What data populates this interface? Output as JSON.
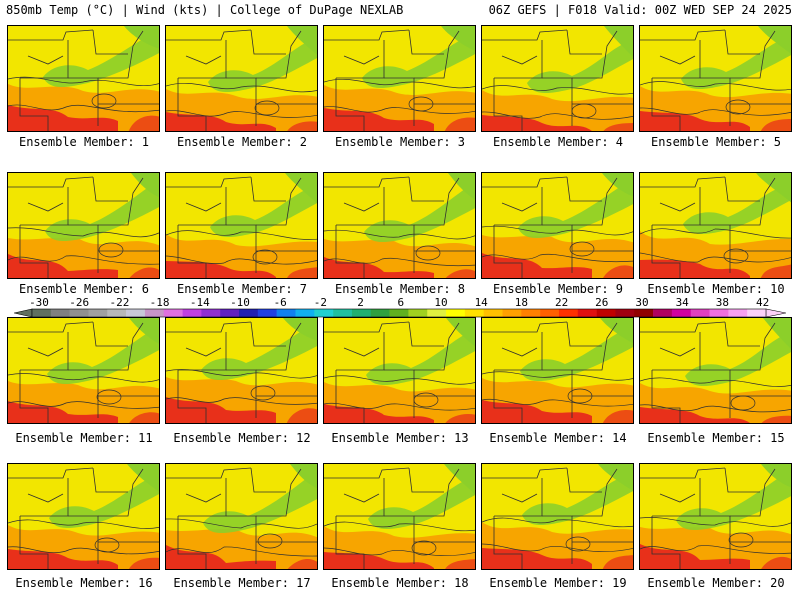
{
  "header": {
    "left": "850mb Temp (°C) | Wind (kts) | College of DuPage NEXLAB",
    "right": "06Z GEFS | F018 Valid: 00Z WED SEP 24 2025"
  },
  "panel_label_prefix": "Ensemble Member:",
  "members": [
    {
      "label": "Ensemble Member: 1"
    },
    {
      "label": "Ensemble Member: 2"
    },
    {
      "label": "Ensemble Member: 3"
    },
    {
      "label": "Ensemble Member: 4"
    },
    {
      "label": "Ensemble Member: 5"
    },
    {
      "label": "Ensemble Member: 6"
    },
    {
      "label": "Ensemble Member: 7"
    },
    {
      "label": "Ensemble Member: 8"
    },
    {
      "label": "Ensemble Member: 9"
    },
    {
      "label": "Ensemble Member: 10"
    },
    {
      "label": "Ensemble Member: 11"
    },
    {
      "label": "Ensemble Member: 12"
    },
    {
      "label": "Ensemble Member: 13"
    },
    {
      "label": "Ensemble Member: 14"
    },
    {
      "label": "Ensemble Member: 15"
    },
    {
      "label": "Ensemble Member: 16"
    },
    {
      "label": "Ensemble Member: 17"
    },
    {
      "label": "Ensemble Member: 18"
    },
    {
      "label": "Ensemble Member: 19"
    },
    {
      "label": "Ensemble Member: 20"
    }
  ],
  "colorbar": {
    "ticks": [
      "-30",
      "-26",
      "-22",
      "-18",
      "-14",
      "-10",
      "-6",
      "-2",
      "2",
      "6",
      "10",
      "14",
      "18",
      "22",
      "26",
      "30",
      "34",
      "38",
      "42"
    ],
    "colors": [
      "#607060",
      "#808080",
      "#909090",
      "#a0a0a0",
      "#b8b8b8",
      "#c8c8d8",
      "#c896c8",
      "#e070e0",
      "#c040e0",
      "#9030d0",
      "#6020c0",
      "#2020b0",
      "#2040e0",
      "#1080f0",
      "#10b0f0",
      "#20d0d0",
      "#20c0a0",
      "#20b070",
      "#30a040",
      "#60b020",
      "#a0d020",
      "#e0f040",
      "#ffff00",
      "#ffe000",
      "#ffc000",
      "#ffa000",
      "#ff8000",
      "#ff6000",
      "#ff3000",
      "#e01010",
      "#c00000",
      "#a00010",
      "#900000",
      "#b00060",
      "#d000a0",
      "#e040c0",
      "#f070e0",
      "#f8a0f0",
      "#fcd0f8"
    ]
  },
  "map_colors": {
    "green": "#8ccf2a",
    "yellow": "#f2e600",
    "orange": "#f7a500",
    "red": "#e8301a",
    "boundary": "#303030"
  }
}
